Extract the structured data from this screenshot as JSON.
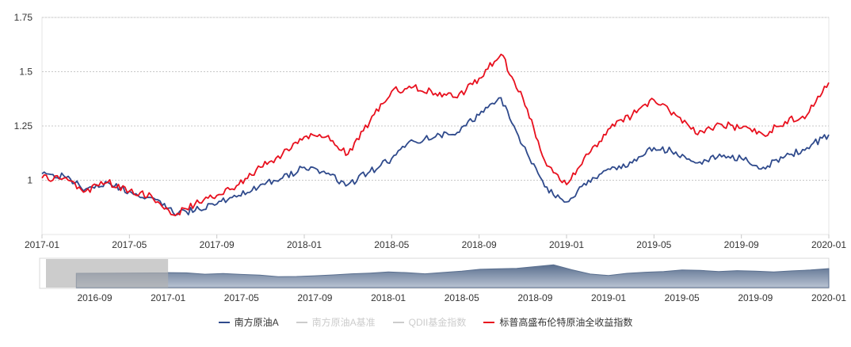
{
  "chart_data": {
    "type": "line",
    "y_ticks": [
      "1.75",
      "1.5",
      "1.25",
      "1"
    ],
    "y_tick_values": [
      1.75,
      1.5,
      1.25,
      1.0
    ],
    "ylim": [
      0.75,
      1.75
    ],
    "x_ticks": [
      "2017-01",
      "2017-05",
      "2017-09",
      "2018-01",
      "2018-05",
      "2018-09",
      "2019-01",
      "2019-05",
      "2019-09",
      "2020-01"
    ],
    "xlim": [
      "2017-01",
      "2020-01"
    ],
    "grid": "horizontal dashed",
    "x_dates": [
      "2017-01",
      "2017-02",
      "2017-03",
      "2017-04",
      "2017-05",
      "2017-06",
      "2017-07",
      "2017-08",
      "2017-09",
      "2017-10",
      "2017-11",
      "2017-12",
      "2018-01",
      "2018-02",
      "2018-03",
      "2018-04",
      "2018-05",
      "2018-06",
      "2018-07",
      "2018-08",
      "2018-09",
      "2018-10",
      "2018-11",
      "2018-12",
      "2019-01",
      "2019-02",
      "2019-03",
      "2019-04",
      "2019-05",
      "2019-06",
      "2019-07",
      "2019-08",
      "2019-09",
      "2019-10",
      "2019-11",
      "2019-12",
      "2020-01"
    ],
    "series": [
      {
        "name": "南方原油A",
        "color": "#2f4a8c",
        "values": [
          1.03,
          1.02,
          0.96,
          0.99,
          0.95,
          0.92,
          0.85,
          0.86,
          0.89,
          0.93,
          0.98,
          1.01,
          1.06,
          1.03,
          0.98,
          1.04,
          1.1,
          1.18,
          1.2,
          1.22,
          1.3,
          1.38,
          1.16,
          0.97,
          0.9,
          1.0,
          1.05,
          1.08,
          1.15,
          1.13,
          1.08,
          1.12,
          1.1,
          1.06,
          1.11,
          1.15,
          1.21
        ]
      },
      {
        "name": "标普高盛布伦特原油全收益指数",
        "color": "#e8101e",
        "values": [
          1.01,
          1.01,
          0.95,
          0.99,
          0.95,
          0.93,
          0.84,
          0.89,
          0.93,
          0.98,
          1.06,
          1.12,
          1.2,
          1.2,
          1.12,
          1.27,
          1.41,
          1.43,
          1.4,
          1.38,
          1.47,
          1.58,
          1.38,
          1.09,
          0.98,
          1.12,
          1.24,
          1.3,
          1.37,
          1.3,
          1.21,
          1.26,
          1.24,
          1.21,
          1.27,
          1.3,
          1.45
        ]
      }
    ],
    "navigator": {
      "x_ticks": [
        "2016-09",
        "2017-01",
        "2017-05",
        "2017-09",
        "2018-01",
        "2018-05",
        "2018-09",
        "2019-01",
        "2019-05",
        "2019-09",
        "2020-01"
      ]
    },
    "legend": {
      "position": "bottom-center",
      "items": [
        {
          "name": "南方原油A",
          "color": "#2f4a8c",
          "active": true
        },
        {
          "name": "南方原油A基准",
          "color": "#cccccc",
          "active": false
        },
        {
          "name": "QDII基金指数",
          "color": "#cccccc",
          "active": false
        },
        {
          "name": "标普高盛布伦特原油全收益指数",
          "color": "#e8101e",
          "active": true
        }
      ]
    }
  }
}
